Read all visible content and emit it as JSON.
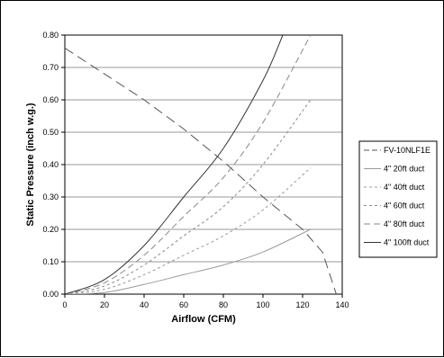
{
  "chart_data": {
    "type": "line",
    "title": "",
    "xlabel": "Airflow (CFM)",
    "ylabel": "Static Pressure (inch w.g.)",
    "xlim": [
      0,
      140
    ],
    "ylim": [
      0,
      0.8
    ],
    "x_ticks": [
      "0",
      "20",
      "40",
      "60",
      "80",
      "100",
      "120",
      "140"
    ],
    "y_ticks": [
      "0.00",
      "0.10",
      "0.20",
      "0.30",
      "0.40",
      "0.50",
      "0.60",
      "0.70",
      "0.80"
    ],
    "grid": "horizontal",
    "legend_position": "right",
    "series": [
      {
        "name": "FV-10NLF1E",
        "style": "long-dash",
        "color": "#555555",
        "x": [
          0,
          20,
          40,
          60,
          80,
          100,
          110,
          120,
          130,
          137
        ],
        "y": [
          0.76,
          0.68,
          0.6,
          0.51,
          0.41,
          0.3,
          0.25,
          0.2,
          0.13,
          0.0
        ]
      },
      {
        "name": "4\" 20ft duct",
        "style": "solid",
        "color": "#9a9a9a",
        "x": [
          0,
          20,
          40,
          60,
          80,
          100,
          124
        ],
        "y": [
          0.0,
          0.005,
          0.03,
          0.06,
          0.09,
          0.13,
          0.2
        ]
      },
      {
        "name": "4\" 40ft duct",
        "style": "short-dash",
        "color": "#9a9a9a",
        "x": [
          0,
          20,
          40,
          60,
          80,
          100,
          124
        ],
        "y": [
          0.0,
          0.015,
          0.06,
          0.12,
          0.18,
          0.26,
          0.39
        ]
      },
      {
        "name": "4\" 60ft duct",
        "style": "short-dash",
        "color": "#888888",
        "x": [
          0,
          20,
          40,
          60,
          80,
          100,
          124
        ],
        "y": [
          0.0,
          0.025,
          0.09,
          0.18,
          0.27,
          0.4,
          0.6
        ]
      },
      {
        "name": "4\" 80ft duct",
        "style": "dash",
        "color": "#888888",
        "x": [
          0,
          20,
          40,
          60,
          80,
          100,
          124
        ],
        "y": [
          0.0,
          0.035,
          0.12,
          0.24,
          0.36,
          0.53,
          0.8
        ]
      },
      {
        "name": "4\" 100ft duct",
        "style": "solid",
        "color": "#333333",
        "x": [
          0,
          20,
          40,
          60,
          80,
          100,
          110
        ],
        "y": [
          0.0,
          0.045,
          0.15,
          0.3,
          0.45,
          0.66,
          0.8
        ]
      }
    ]
  }
}
